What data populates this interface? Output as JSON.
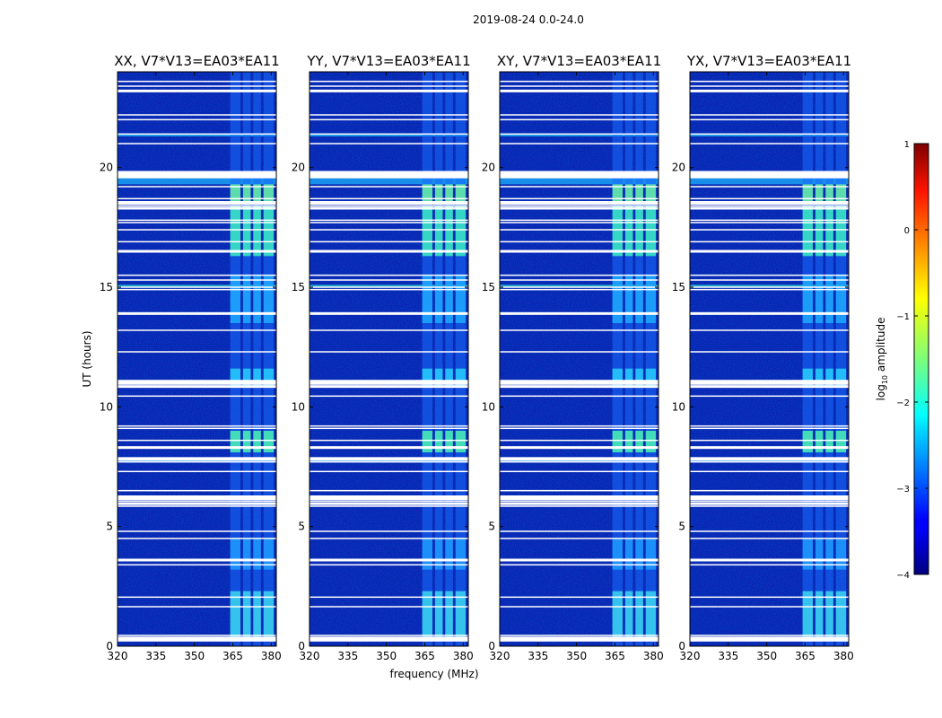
{
  "suptitle": "2019-08-24 0.0-24.0",
  "chart_data": {
    "type": "heatmap",
    "xlabel": "frequency (MHz)",
    "ylabel": "UT (hours)",
    "xlim": [
      320,
      382
    ],
    "ylim": [
      0,
      24
    ],
    "x_ticks": [
      "320",
      "335",
      "350",
      "365",
      "380"
    ],
    "y_ticks": [
      "0",
      "5",
      "10",
      "15",
      "20"
    ],
    "panels": [
      {
        "title": "XX, V7*V13=EA03*EA11"
      },
      {
        "title": "YY, V7*V13=EA03*EA11"
      },
      {
        "title": "XY, V7*V13=EA03*EA11"
      },
      {
        "title": "YX, V7*V13=EA03*EA11"
      }
    ],
    "colorbar": {
      "label": "log10 amplitude",
      "label_base": "log",
      "label_sub": "10",
      "label_rest": " amplitude",
      "range": [
        -4,
        1
      ],
      "ticks": [
        "1",
        "0",
        "−1",
        "−2",
        "−3",
        "−4"
      ],
      "colormap": "jet"
    },
    "rfi_bands_mhz": [
      [
        364,
        368
      ],
      [
        369,
        372
      ],
      [
        373,
        376
      ],
      [
        377,
        381
      ]
    ],
    "flagged_hours": [
      0.25,
      0.45,
      1.65,
      2.05,
      3.4,
      3.6,
      4.5,
      4.8,
      5.85,
      6.05,
      6.15,
      6.5,
      7.3,
      7.7,
      7.85,
      8.3,
      8.6,
      9.1,
      9.2,
      10.45,
      10.85,
      10.95,
      11.1,
      12.3,
      13.2,
      13.9,
      14.9,
      15.0,
      15.3,
      15.5,
      16.5,
      16.9,
      17.4,
      17.7,
      17.8,
      18.3,
      18.4,
      18.7,
      19.2,
      19.7,
      19.8,
      21.0,
      21.4,
      22.0,
      22.2,
      23.2,
      23.4,
      23.6
    ]
  }
}
